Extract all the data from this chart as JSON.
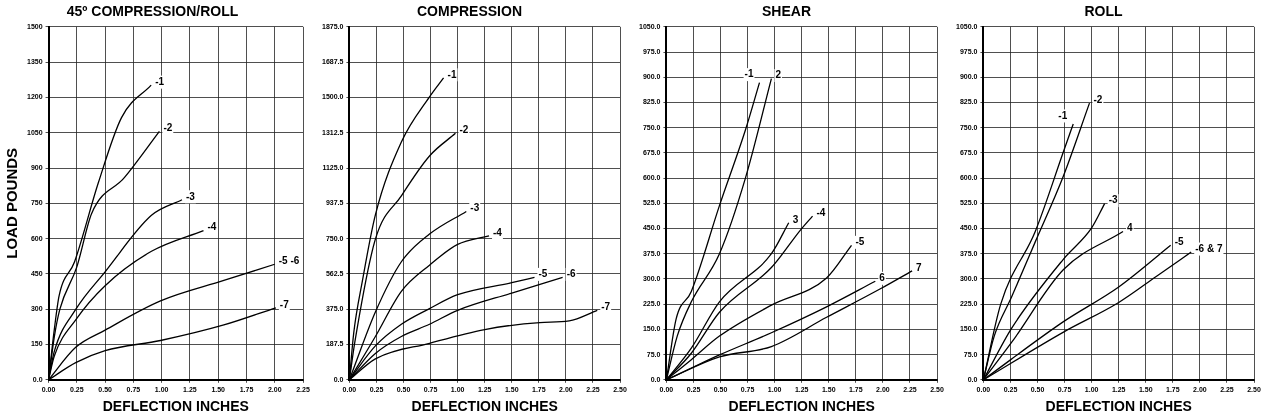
{
  "chart_data": [
    {
      "type": "line",
      "title": "45º COMPRESSION/ROLL",
      "xlabel": "DEFLECTION INCHES",
      "ylabel": "LOAD POUNDS",
      "grid": true,
      "marker": "none",
      "xlim": [
        0,
        2.25
      ],
      "ylim": [
        0,
        1500
      ],
      "xticks": [
        {
          "value": 0,
          "label": "0.00"
        },
        0.25,
        {
          "value": 0.5,
          "label": "0.50"
        },
        0.75,
        {
          "value": 1,
          "label": "1.00"
        },
        1.25,
        {
          "value": 1.5,
          "label": "1.50"
        },
        1.75,
        {
          "value": 2,
          "label": "2.00"
        },
        2.25
      ],
      "yticks": [
        {
          "value": 0,
          "label": "0.0"
        },
        150,
        300,
        450,
        600,
        750,
        900,
        1050,
        1200,
        1350,
        1500
      ],
      "series": [
        {
          "name": "-1",
          "color": "#000000",
          "x": [
            0,
            0.05,
            0.093,
            0.23,
            0.44,
            0.645,
            0.907
          ],
          "values": [
            0,
            211,
            357,
            502,
            837,
            1114,
            1252
          ]
        },
        {
          "name": "-2",
          "color": "#000000",
          "x": [
            0,
            0.05,
            0.1,
            0.25,
            0.38,
            0.67,
            0.98
          ],
          "values": [
            0,
            180,
            300,
            480,
            706,
            859,
            1056
          ]
        },
        {
          "name": "-3",
          "color": "#000000",
          "x": [
            0,
            0.05,
            0.24,
            0.5,
            0.91,
            1.18
          ],
          "values": [
            0,
            120,
            299,
            459,
            699,
            765
          ]
        },
        {
          "name": "-4",
          "color": "#000000",
          "x": [
            0,
            0.05,
            0.24,
            0.5,
            0.91,
            1.37
          ],
          "values": [
            0,
            100,
            255,
            400,
            546,
            634
          ]
        },
        {
          "name": "-5 -6",
          "color": "#000000",
          "x": [
            0,
            0.24,
            0.5,
            0.99,
            1.55,
            2.0
          ],
          "values": [
            0,
            138,
            211,
            335,
            422,
            491
          ]
        },
        {
          "name": "-7",
          "color": "#000000",
          "x": [
            0,
            0.24,
            0.5,
            0.99,
            1.55,
            2.01
          ],
          "values": [
            0,
            73,
            124,
            167,
            233,
            306
          ]
        }
      ]
    },
    {
      "type": "line",
      "title": "COMPRESSION",
      "xlabel": "DEFLECTION INCHES",
      "grid": true,
      "marker": "none",
      "xlim": [
        0,
        2.5
      ],
      "ylim": [
        0,
        1875
      ],
      "xticks": [
        {
          "value": 0,
          "label": "0.00"
        },
        0.25,
        {
          "value": 0.5,
          "label": "0.50"
        },
        0.75,
        {
          "value": 1,
          "label": "1.00"
        },
        1.25,
        {
          "value": 1.5,
          "label": "1.50"
        },
        1.75,
        {
          "value": 2,
          "label": "2.00"
        },
        2.25,
        {
          "value": 2.5,
          "label": "2.50"
        }
      ],
      "yticks": [
        {
          "value": 0,
          "label": "0.0"
        },
        187.5,
        {
          "value": 375,
          "label": "375.0"
        },
        562.5,
        {
          "value": 750,
          "label": "750.0"
        },
        937.5,
        {
          "value": 1125,
          "label": "1125.0"
        },
        1312.5,
        {
          "value": 1500,
          "label": "1500.0"
        },
        1687.5,
        {
          "value": 1875,
          "label": "1875.0"
        }
      ],
      "series": [
        {
          "name": "-1",
          "color": "#000000",
          "x": [
            0,
            0.04,
            0.12,
            0.24,
            0.48,
            0.74,
            0.87
          ],
          "values": [
            0,
            249,
            525,
            876,
            1263,
            1503,
            1604
          ]
        },
        {
          "name": "-2",
          "color": "#000000",
          "x": [
            0,
            0.05,
            0.24,
            0.48,
            0.74,
            0.98
          ],
          "values": [
            0,
            200,
            747,
            977,
            1189,
            1309
          ]
        },
        {
          "name": "-3",
          "color": "#000000",
          "x": [
            0,
            0.24,
            0.48,
            0.74,
            1.08
          ],
          "values": [
            0,
            360,
            627,
            774,
            894
          ]
        },
        {
          "name": "-4",
          "color": "#000000",
          "x": [
            0,
            0.24,
            0.48,
            0.74,
            1.0,
            1.29
          ],
          "values": [
            0,
            230,
            470,
            609,
            719,
            765
          ]
        },
        {
          "name": "-5",
          "color": "#000000",
          "x": [
            0,
            0.24,
            0.48,
            0.74,
            1.0,
            1.5,
            1.71
          ],
          "values": [
            0,
            180,
            295,
            378,
            452,
            516,
            544
          ]
        },
        {
          "name": "-6",
          "color": "#000000",
          "x": [
            0,
            0.24,
            0.48,
            0.74,
            1.0,
            1.5,
            1.97
          ],
          "values": [
            0,
            140,
            230,
            295,
            369,
            461,
            544
          ]
        },
        {
          "name": "-7",
          "color": "#000000",
          "x": [
            0,
            0.24,
            0.74,
            1.25,
            1.76,
            2.03,
            2.29
          ],
          "values": [
            0,
            111,
            194,
            267,
            304,
            313,
            369
          ]
        }
      ]
    },
    {
      "type": "line",
      "title": "SHEAR",
      "xlabel": "DEFLECTION INCHES",
      "grid": true,
      "marker": "none",
      "xlim": [
        0,
        2.5
      ],
      "ylim": [
        0,
        1050
      ],
      "xticks": [
        {
          "value": 0,
          "label": "0.00"
        },
        0.25,
        {
          "value": 0.5,
          "label": "0.50"
        },
        0.75,
        {
          "value": 1,
          "label": "1.00"
        },
        1.25,
        {
          "value": 1.5,
          "label": "1.50"
        },
        1.75,
        {
          "value": 2,
          "label": "2.00"
        },
        2.25,
        {
          "value": 2.5,
          "label": "2.50"
        }
      ],
      "yticks": [
        {
          "value": 0,
          "label": "0.0"
        },
        {
          "value": 75,
          "label": "75.0"
        },
        {
          "value": 150,
          "label": "150.0"
        },
        {
          "value": 225,
          "label": "225.0"
        },
        {
          "value": 300,
          "label": "300.0"
        },
        {
          "value": 375,
          "label": "375.0"
        },
        {
          "value": 450,
          "label": "450.0"
        },
        {
          "value": 525,
          "label": "525.0"
        },
        {
          "value": 600,
          "label": "600.0"
        },
        {
          "value": 675,
          "label": "675.0"
        },
        {
          "value": 750,
          "label": "750.0"
        },
        {
          "value": 825,
          "label": "825.0"
        },
        {
          "value": 900,
          "label": "900.0"
        },
        {
          "value": 975,
          "label": "975.0"
        },
        {
          "value": 1050,
          "label": "1050.0"
        }
      ],
      "series": [
        {
          "name": "-1",
          "color": "#000000",
          "x": [
            0,
            0.09,
            0.23,
            0.49,
            0.73,
            0.86
          ],
          "values": [
            0,
            181,
            263,
            518,
            743,
            884
          ]
        },
        {
          "name": "2",
          "color": "#000000",
          "x": [
            0,
            0.1,
            0.23,
            0.49,
            0.73,
            0.97
          ],
          "values": [
            0,
            130,
            232,
            375,
            600,
            896
          ]
        },
        {
          "name": "3",
          "color": "#000000",
          "x": [
            0,
            0.23,
            0.49,
            0.97,
            1.13
          ],
          "values": [
            0,
            94,
            232,
            375,
            467
          ]
        },
        {
          "name": "-4",
          "color": "#000000",
          "x": [
            0,
            0.23,
            0.49,
            0.97,
            1.24,
            1.35
          ],
          "values": [
            0,
            79,
            201,
            334,
            446,
            487
          ]
        },
        {
          "name": "-5",
          "color": "#000000",
          "x": [
            0,
            0.23,
            0.49,
            0.97,
            1.48,
            1.71
          ],
          "values": [
            0,
            60,
            130,
            222,
            303,
            400
          ]
        },
        {
          "name": "6",
          "color": "#000000",
          "x": [
            0,
            0.23,
            0.49,
            0.97,
            1.48,
            1.93
          ],
          "values": [
            0,
            35,
            74,
            140,
            217,
            293
          ]
        },
        {
          "name": "7",
          "color": "#000000",
          "x": [
            0,
            0.49,
            0.97,
            1.48,
            1.99,
            2.27
          ],
          "values": [
            0,
            68,
            99,
            186,
            273,
            324
          ]
        }
      ]
    },
    {
      "type": "line",
      "title": "ROLL",
      "xlabel": "DEFLECTION INCHES",
      "grid": true,
      "marker": "none",
      "xlim": [
        0,
        2.5
      ],
      "ylim": [
        0,
        1050
      ],
      "xticks": [
        {
          "value": 0,
          "label": "0.00"
        },
        0.25,
        {
          "value": 0.5,
          "label": "0.50"
        },
        0.75,
        {
          "value": 1,
          "label": "1.00"
        },
        1.25,
        {
          "value": 1.5,
          "label": "1.50"
        },
        1.75,
        {
          "value": 2,
          "label": "2.00"
        },
        2.25,
        {
          "value": 2.5,
          "label": "2.50"
        }
      ],
      "yticks": [
        {
          "value": 0,
          "label": "0.0"
        },
        {
          "value": 75,
          "label": "75.0"
        },
        {
          "value": 150,
          "label": "150.0"
        },
        {
          "value": 225,
          "label": "225.0"
        },
        {
          "value": 300,
          "label": "300.0"
        },
        {
          "value": 375,
          "label": "375.0"
        },
        {
          "value": 450,
          "label": "450.0"
        },
        {
          "value": 525,
          "label": "525.0"
        },
        {
          "value": 600,
          "label": "600.0"
        },
        {
          "value": 675,
          "label": "675.0"
        },
        {
          "value": 750,
          "label": "750.0"
        },
        {
          "value": 825,
          "label": "825.0"
        },
        {
          "value": 900,
          "label": "900.0"
        },
        {
          "value": 975,
          "label": "975.0"
        },
        {
          "value": 1050,
          "label": "1050.0"
        }
      ],
      "series": [
        {
          "name": "-1",
          "color": "#000000",
          "x": [
            0,
            0.16,
            0.48,
            0.74,
            0.83
          ],
          "values": [
            0,
            225,
            442,
            679,
            761
          ]
        },
        {
          "name": "-2",
          "color": "#000000",
          "x": [
            0,
            0.1,
            0.26,
            0.48,
            0.74,
            0.98
          ],
          "values": [
            0,
            130,
            246,
            411,
            607,
            823
          ]
        },
        {
          "name": "-3",
          "color": "#000000",
          "x": [
            0,
            0.26,
            0.74,
            1.0,
            1.12
          ],
          "values": [
            0,
            153,
            359,
            452,
            524
          ]
        },
        {
          "name": "4",
          "color": "#000000",
          "x": [
            0,
            0.26,
            0.74,
            1.29
          ],
          "values": [
            0,
            111,
            328,
            441
          ]
        },
        {
          "name": "-5",
          "color": "#000000",
          "x": [
            0,
            0.74,
            1.25,
            1.73
          ],
          "values": [
            0,
            173,
            276,
            400
          ]
        },
        {
          "name": "-6 & 7",
          "color": "#000000",
          "x": [
            0,
            0.74,
            1.25,
            1.6,
            1.92
          ],
          "values": [
            0,
            142,
            230,
            308,
            380
          ]
        }
      ]
    }
  ]
}
